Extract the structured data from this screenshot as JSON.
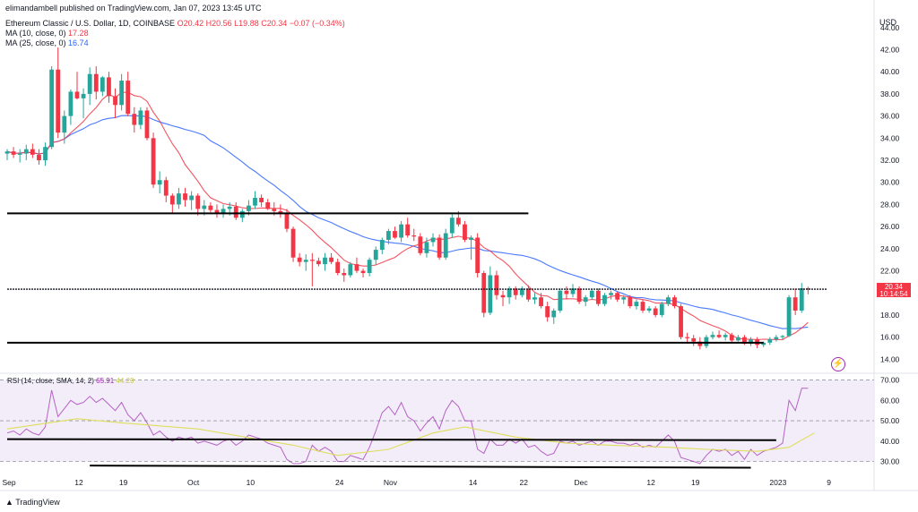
{
  "publisher_line": "elimandambell published on TradingView.com, Jan 07, 2023 13:45 UTC",
  "symbol": "Ethereum Classic / U.S. Dollar, 1D, COINBASE",
  "ohlc": {
    "o": "O20.42",
    "h": "H20.56",
    "l": "L19.88",
    "c": "C20.34",
    "chg": "−0.07 (−0.34%)"
  },
  "ma10": {
    "label": "MA (10, close, 0)",
    "value": "17.28"
  },
  "ma25": {
    "label": "MA (25, close, 0)",
    "value": "16.74"
  },
  "rsi": {
    "label": "RSI (14, close, SMA, 14, 2)",
    "value": "65.91",
    "sma": "44.29"
  },
  "currency": "USD",
  "price_badge": {
    "price": "20.34",
    "countdown": "10:14:54"
  },
  "footer": "TradingView",
  "flash_icon": "lightning-icon",
  "colors": {
    "up": "#26a69a",
    "down": "#f23645",
    "ma10": "#f23645",
    "ma25": "#2962ff",
    "rsi": "#9c27b0",
    "rsi_sma": "#dede5c",
    "rsi_band": "#ede7f6"
  },
  "chart_data": {
    "type": "candlestick",
    "price_axis": {
      "ticks": [
        "44.00",
        "42.00",
        "40.00",
        "38.00",
        "36.00",
        "34.00",
        "32.00",
        "30.00",
        "28.00",
        "26.00",
        "24.00",
        "22.00",
        "20.00",
        "18.00",
        "16.00",
        "14.00"
      ],
      "range": [
        13.3,
        45.2
      ]
    },
    "rsi_axis": {
      "ticks": [
        "70.00",
        "60.00",
        "50.00",
        "40.00",
        "30.00"
      ],
      "range": [
        25,
        72
      ],
      "overbought": 70,
      "oversold": 30,
      "mid": 50
    },
    "x_ticks": [
      {
        "label": "Sep",
        "day": 0
      },
      {
        "label": "12",
        "day": 11
      },
      {
        "label": "19",
        "day": 18
      },
      {
        "label": "Oct",
        "day": 29
      },
      {
        "label": "10",
        "day": 38
      },
      {
        "label": "24",
        "day": 52
      },
      {
        "label": "Nov",
        "day": 60
      },
      {
        "label": "14",
        "day": 73
      },
      {
        "label": "22",
        "day": 81
      },
      {
        "label": "Dec",
        "day": 90
      },
      {
        "label": "12",
        "day": 101
      },
      {
        "label": "19",
        "day": 108
      },
      {
        "label": "2023",
        "day": 121
      },
      {
        "label": "9",
        "day": 129
      }
    ],
    "last_day": 127,
    "ohlc": [
      [
        32.6,
        33.0,
        32.0,
        32.8
      ],
      [
        32.8,
        33.2,
        32.2,
        32.5
      ],
      [
        32.5,
        33.0,
        31.8,
        32.6
      ],
      [
        32.6,
        33.4,
        32.0,
        33.0
      ],
      [
        33.0,
        33.5,
        32.2,
        32.5
      ],
      [
        32.5,
        33.0,
        31.6,
        32.0
      ],
      [
        32.0,
        33.6,
        31.5,
        33.2
      ],
      [
        33.2,
        40.5,
        33.0,
        40.2
      ],
      [
        40.2,
        42.2,
        34.0,
        34.5
      ],
      [
        34.5,
        36.5,
        33.5,
        36.0
      ],
      [
        36.0,
        38.4,
        35.2,
        38.2
      ],
      [
        38.2,
        40.0,
        37.5,
        37.6
      ],
      [
        37.6,
        38.5,
        35.8,
        38.0
      ],
      [
        38.0,
        40.4,
        37.0,
        39.8
      ],
      [
        39.8,
        40.5,
        37.5,
        38.2
      ],
      [
        38.2,
        39.6,
        37.8,
        39.5
      ],
      [
        39.5,
        40.0,
        37.2,
        37.8
      ],
      [
        37.8,
        38.5,
        35.8,
        37.0
      ],
      [
        37.0,
        39.8,
        36.5,
        39.2
      ],
      [
        39.2,
        40.0,
        36.0,
        36.2
      ],
      [
        36.2,
        36.8,
        34.5,
        35.2
      ],
      [
        35.2,
        36.8,
        34.8,
        36.5
      ],
      [
        36.5,
        36.8,
        33.8,
        34.0
      ],
      [
        34.0,
        34.5,
        29.5,
        29.8
      ],
      [
        29.8,
        31.0,
        29.0,
        30.2
      ],
      [
        30.2,
        30.5,
        28.2,
        28.8
      ],
      [
        28.8,
        29.0,
        27.2,
        28.0
      ],
      [
        28.0,
        29.5,
        27.6,
        29.0
      ],
      [
        29.0,
        29.5,
        27.8,
        28.4
      ],
      [
        28.4,
        29.2,
        27.5,
        28.8
      ],
      [
        28.8,
        29.0,
        27.0,
        27.6
      ],
      [
        27.6,
        28.4,
        27.0,
        27.9
      ],
      [
        27.9,
        28.2,
        27.3,
        27.5
      ],
      [
        27.5,
        28.0,
        26.8,
        27.2
      ],
      [
        27.2,
        28.0,
        26.8,
        27.6
      ],
      [
        27.6,
        28.2,
        27.0,
        27.8
      ],
      [
        27.8,
        28.2,
        26.6,
        26.8
      ],
      [
        26.8,
        27.6,
        26.4,
        27.4
      ],
      [
        27.4,
        28.4,
        27.0,
        27.9
      ],
      [
        27.9,
        29.2,
        27.6,
        28.6
      ],
      [
        28.6,
        28.9,
        27.8,
        28.2
      ],
      [
        28.2,
        28.5,
        27.5,
        27.6
      ],
      [
        27.6,
        28.2,
        27.0,
        27.4
      ],
      [
        27.4,
        28.0,
        26.8,
        27.2
      ],
      [
        27.2,
        27.6,
        25.5,
        25.8
      ],
      [
        25.8,
        26.0,
        22.8,
        23.2
      ],
      [
        23.2,
        23.6,
        22.4,
        22.8
      ],
      [
        22.8,
        23.5,
        22.0,
        23.0
      ],
      [
        23.0,
        23.6,
        20.6,
        22.9
      ],
      [
        22.9,
        23.2,
        22.4,
        22.6
      ],
      [
        22.6,
        23.6,
        22.0,
        23.2
      ],
      [
        23.2,
        23.6,
        22.6,
        22.8
      ],
      [
        22.8,
        23.1,
        21.6,
        21.8
      ],
      [
        21.8,
        22.2,
        21.0,
        21.6
      ],
      [
        21.6,
        22.8,
        21.4,
        22.6
      ],
      [
        22.6,
        23.2,
        21.8,
        22.0
      ],
      [
        22.0,
        22.2,
        21.4,
        21.8
      ],
      [
        21.8,
        23.2,
        21.5,
        23.0
      ],
      [
        23.0,
        24.2,
        22.5,
        23.9
      ],
      [
        23.9,
        25.0,
        23.5,
        24.8
      ],
      [
        24.8,
        25.8,
        24.4,
        25.6
      ],
      [
        25.6,
        26.0,
        24.9,
        25.0
      ],
      [
        25.0,
        26.5,
        24.6,
        26.2
      ],
      [
        26.2,
        26.8,
        25.0,
        25.2
      ],
      [
        25.2,
        25.8,
        24.7,
        25.1
      ],
      [
        25.1,
        25.4,
        23.4,
        23.6
      ],
      [
        23.6,
        25.0,
        23.2,
        24.6
      ],
      [
        24.6,
        25.4,
        24.2,
        25.0
      ],
      [
        25.0,
        25.3,
        23.0,
        23.2
      ],
      [
        23.2,
        25.8,
        23.0,
        25.4
      ],
      [
        25.4,
        27.2,
        25.0,
        26.8
      ],
      [
        26.8,
        27.4,
        26.0,
        26.2
      ],
      [
        26.2,
        26.5,
        24.6,
        24.8
      ],
      [
        24.8,
        25.2,
        23.0,
        25.0
      ],
      [
        25.0,
        25.4,
        21.4,
        21.8
      ],
      [
        21.8,
        22.0,
        17.8,
        18.2
      ],
      [
        18.2,
        22.4,
        18.0,
        21.6
      ],
      [
        21.6,
        22.0,
        19.4,
        19.8
      ],
      [
        19.8,
        20.2,
        18.8,
        19.6
      ],
      [
        19.6,
        20.6,
        19.0,
        20.4
      ],
      [
        20.4,
        20.6,
        19.4,
        19.8
      ],
      [
        19.8,
        20.6,
        19.6,
        20.4
      ],
      [
        20.4,
        20.7,
        19.2,
        19.4
      ],
      [
        19.4,
        20.0,
        19.0,
        19.6
      ],
      [
        19.6,
        20.0,
        18.6,
        18.8
      ],
      [
        18.8,
        19.2,
        17.4,
        17.8
      ],
      [
        17.8,
        18.6,
        17.2,
        18.4
      ],
      [
        18.4,
        20.4,
        18.2,
        20.2
      ],
      [
        20.2,
        20.6,
        19.4,
        19.9
      ],
      [
        19.9,
        20.8,
        19.6,
        20.4
      ],
      [
        20.4,
        20.6,
        19.0,
        19.2
      ],
      [
        19.2,
        19.8,
        18.8,
        19.6
      ],
      [
        19.6,
        20.4,
        19.4,
        20.2
      ],
      [
        20.2,
        20.4,
        18.8,
        19.0
      ],
      [
        19.0,
        20.0,
        18.8,
        19.8
      ],
      [
        19.8,
        20.2,
        19.4,
        20.0
      ],
      [
        20.0,
        20.1,
        19.2,
        19.4
      ],
      [
        19.4,
        19.8,
        19.0,
        19.6
      ],
      [
        19.6,
        19.8,
        18.6,
        18.8
      ],
      [
        18.8,
        19.4,
        18.5,
        19.2
      ],
      [
        19.2,
        19.4,
        18.2,
        18.4
      ],
      [
        18.4,
        18.8,
        18.2,
        18.6
      ],
      [
        18.6,
        18.8,
        17.8,
        18.0
      ],
      [
        18.0,
        19.2,
        17.8,
        19.0
      ],
      [
        19.0,
        19.8,
        18.8,
        19.6
      ],
      [
        19.6,
        19.8,
        18.6,
        18.8
      ],
      [
        18.8,
        19.0,
        15.8,
        16.0
      ],
      [
        16.0,
        16.4,
        15.4,
        15.9
      ],
      [
        15.9,
        16.2,
        15.2,
        15.6
      ],
      [
        15.6,
        16.0,
        14.9,
        15.2
      ],
      [
        15.2,
        16.2,
        15.0,
        16.0
      ],
      [
        16.0,
        16.5,
        15.8,
        16.2
      ],
      [
        16.2,
        16.6,
        15.9,
        16.0
      ],
      [
        16.0,
        16.4,
        15.7,
        16.2
      ],
      [
        16.2,
        16.4,
        15.5,
        15.7
      ],
      [
        15.7,
        16.2,
        15.6,
        16.0
      ],
      [
        16.0,
        16.2,
        15.3,
        15.4
      ],
      [
        15.4,
        16.0,
        15.2,
        15.8
      ],
      [
        15.8,
        16.0,
        15.0,
        15.3
      ],
      [
        15.3,
        15.6,
        15.1,
        15.5
      ],
      [
        15.5,
        16.0,
        15.3,
        15.8
      ],
      [
        15.8,
        16.2,
        15.6,
        16.0
      ],
      [
        16.0,
        16.2,
        15.8,
        16.1
      ],
      [
        16.1,
        19.8,
        16.0,
        19.6
      ],
      [
        19.6,
        20.4,
        18.0,
        18.4
      ],
      [
        18.4,
        20.9,
        18.2,
        20.42
      ],
      [
        20.42,
        20.56,
        19.88,
        20.34
      ]
    ],
    "rsi_values": [
      44,
      45,
      43,
      46,
      44,
      43,
      47,
      65,
      52,
      56,
      60,
      58,
      59,
      62,
      59,
      61,
      58,
      55,
      59,
      53,
      50,
      54,
      49,
      43,
      45,
      42,
      40,
      42,
      41,
      42,
      39,
      40,
      39,
      38,
      40,
      41,
      38,
      40,
      43,
      42,
      41,
      39,
      38,
      37,
      31,
      29,
      29,
      30,
      38,
      35,
      37,
      35,
      30,
      30,
      33,
      32,
      31,
      37,
      45,
      54,
      57,
      53,
      59,
      52,
      50,
      45,
      49,
      52,
      46,
      55,
      60,
      57,
      50,
      50,
      36,
      34,
      41,
      38,
      38,
      41,
      39,
      41,
      37,
      38,
      35,
      33,
      34,
      40,
      39,
      40,
      38,
      39,
      40,
      38,
      40,
      40,
      39,
      39,
      38,
      39,
      37,
      38,
      37,
      40,
      43,
      40,
      32,
      31,
      30,
      29,
      33,
      36,
      35,
      36,
      33,
      35,
      31,
      36,
      33,
      35,
      36,
      37,
      39,
      60,
      55,
      66,
      66
    ],
    "rsi_sma_points": [
      [
        0,
        46
      ],
      [
        11,
        51
      ],
      [
        18,
        49
      ],
      [
        30,
        46
      ],
      [
        45,
        38
      ],
      [
        52,
        33
      ],
      [
        60,
        36
      ],
      [
        67,
        44
      ],
      [
        72,
        47
      ],
      [
        80,
        42
      ],
      [
        88,
        39
      ],
      [
        95,
        38
      ],
      [
        104,
        37
      ],
      [
        110,
        36
      ],
      [
        118,
        35
      ],
      [
        123,
        37
      ],
      [
        127,
        44
      ]
    ],
    "trend_lines": [
      {
        "pane": "price",
        "from": [
          0,
          27.2
        ],
        "to": [
          82,
          27.2
        ]
      },
      {
        "pane": "price",
        "from": [
          0,
          20.34
        ],
        "to": [
          129,
          20.34
        ]
      },
      {
        "pane": "price",
        "from": [
          0,
          15.5
        ],
        "to": [
          119,
          15.5
        ]
      },
      {
        "pane": "rsi",
        "from": [
          0,
          41
        ],
        "to": [
          121,
          40.5
        ]
      },
      {
        "pane": "rsi",
        "from": [
          13,
          28
        ],
        "to": [
          117,
          27
        ]
      }
    ]
  }
}
